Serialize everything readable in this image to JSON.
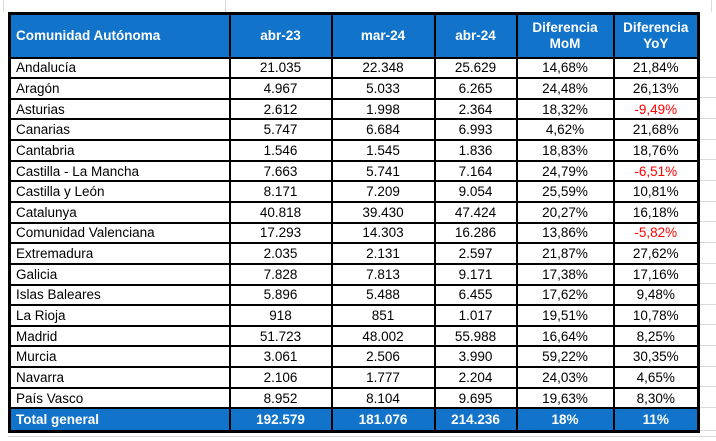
{
  "colors": {
    "header_bg": "#1173C9",
    "total_bg": "#1173C9",
    "negative_text": "#FF0000",
    "border": "#000000",
    "gridline": "#D9D9D9",
    "header_text": "#FFFFFF"
  },
  "table": {
    "columns": [
      "Comunidad Autónoma",
      "abr-23",
      "mar-24",
      "abr-24",
      "Diferencia MoM",
      "Diferencia YoY"
    ],
    "rows": [
      {
        "name": "Andalucía",
        "abr23": "21.035",
        "mar24": "22.348",
        "abr24": "25.629",
        "mom": "14,68%",
        "yoy": "21,84%",
        "yoy_negative": false
      },
      {
        "name": "Aragón",
        "abr23": "4.967",
        "mar24": "5.033",
        "abr24": "6.265",
        "mom": "24,48%",
        "yoy": "26,13%",
        "yoy_negative": false
      },
      {
        "name": "Asturias",
        "abr23": "2.612",
        "mar24": "1.998",
        "abr24": "2.364",
        "mom": "18,32%",
        "yoy": "-9,49%",
        "yoy_negative": true
      },
      {
        "name": "Canarias",
        "abr23": "5.747",
        "mar24": "6.684",
        "abr24": "6.993",
        "mom": "4,62%",
        "yoy": "21,68%",
        "yoy_negative": false
      },
      {
        "name": "Cantabria",
        "abr23": "1.546",
        "mar24": "1.545",
        "abr24": "1.836",
        "mom": "18,83%",
        "yoy": "18,76%",
        "yoy_negative": false
      },
      {
        "name": "Castilla - La Mancha",
        "abr23": "7.663",
        "mar24": "5.741",
        "abr24": "7.164",
        "mom": "24,79%",
        "yoy": "-6,51%",
        "yoy_negative": true
      },
      {
        "name": "Castilla y León",
        "abr23": "8.171",
        "mar24": "7.209",
        "abr24": "9.054",
        "mom": "25,59%",
        "yoy": "10,81%",
        "yoy_negative": false
      },
      {
        "name": "Catalunya",
        "abr23": "40.818",
        "mar24": "39.430",
        "abr24": "47.424",
        "mom": "20,27%",
        "yoy": "16,18%",
        "yoy_negative": false
      },
      {
        "name": "Comunidad Valenciana",
        "abr23": "17.293",
        "mar24": "14.303",
        "abr24": "16.286",
        "mom": "13,86%",
        "yoy": "-5,82%",
        "yoy_negative": true
      },
      {
        "name": "Extremadura",
        "abr23": "2.035",
        "mar24": "2.131",
        "abr24": "2.597",
        "mom": "21,87%",
        "yoy": "27,62%",
        "yoy_negative": false
      },
      {
        "name": "Galicia",
        "abr23": "7.828",
        "mar24": "7.813",
        "abr24": "9.171",
        "mom": "17,38%",
        "yoy": "17,16%",
        "yoy_negative": false
      },
      {
        "name": "Islas Baleares",
        "abr23": "5.896",
        "mar24": "5.488",
        "abr24": "6.455",
        "mom": "17,62%",
        "yoy": "9,48%",
        "yoy_negative": false
      },
      {
        "name": "La Rioja",
        "abr23": "918",
        "mar24": "851",
        "abr24": "1.017",
        "mom": "19,51%",
        "yoy": "10,78%",
        "yoy_negative": false
      },
      {
        "name": "Madrid",
        "abr23": "51.723",
        "mar24": "48.002",
        "abr24": "55.988",
        "mom": "16,64%",
        "yoy": "8,25%",
        "yoy_negative": false
      },
      {
        "name": "Murcia",
        "abr23": "3.061",
        "mar24": "2.506",
        "abr24": "3.990",
        "mom": "59,22%",
        "yoy": "30,35%",
        "yoy_negative": false
      },
      {
        "name": "Navarra",
        "abr23": "2.106",
        "mar24": "1.777",
        "abr24": "2.204",
        "mom": "24,03%",
        "yoy": "4,65%",
        "yoy_negative": false
      },
      {
        "name": "País Vasco",
        "abr23": "8.952",
        "mar24": "8.104",
        "abr24": "9.695",
        "mom": "19,63%",
        "yoy": "8,30%",
        "yoy_negative": false
      }
    ],
    "total": {
      "label": "Total general",
      "abr23": "192.579",
      "mar24": "181.076",
      "abr24": "214.236",
      "mom": "18%",
      "yoy": "11%"
    }
  }
}
